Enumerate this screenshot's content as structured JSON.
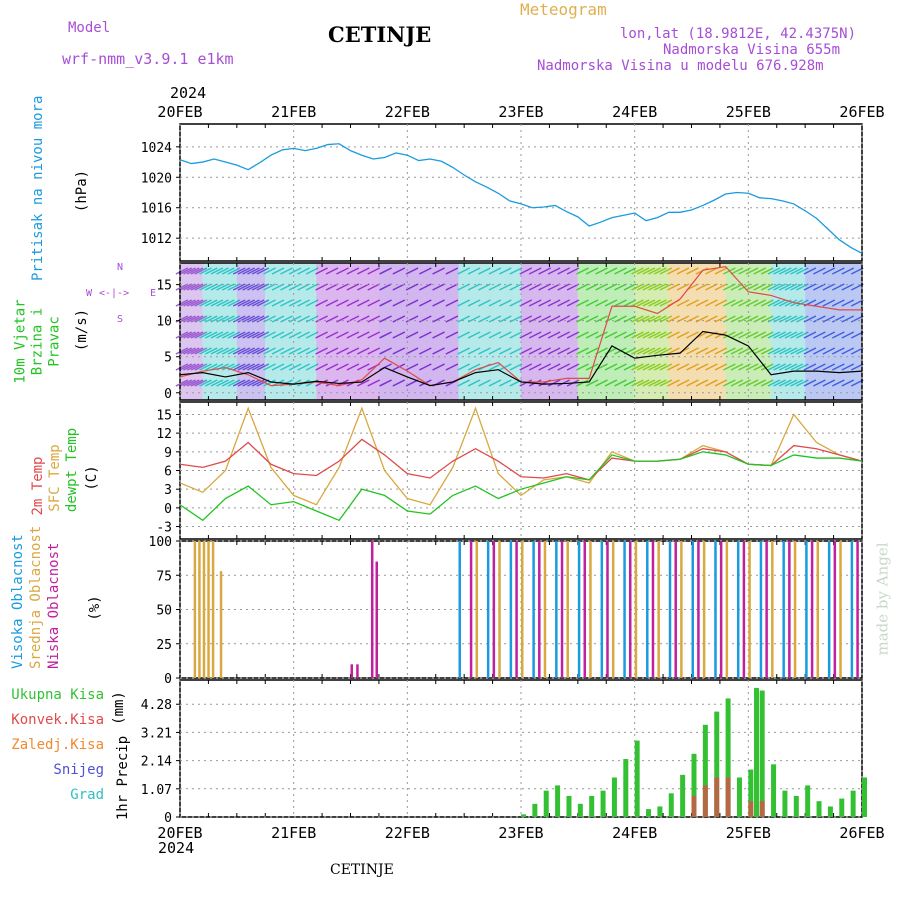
{
  "header": {
    "model_label": "Model",
    "model_name": "wrf-nmm_v3.9.1 e1km",
    "station": "CETINJE",
    "meteogram": "Meteogram",
    "lonlat": "lon,lat (18.9812E, 42.4375N)",
    "elevation": "Nadmorska Visina 655m",
    "model_elevation": "Nadmorska Visina u modelu 676.928m",
    "year_top": "2024",
    "year_bottom": "2024",
    "footer_station": "CETINJE",
    "credit": "made by Angel"
  },
  "colors": {
    "pressure": "#1a9be0",
    "temp2m": "#e04a4a",
    "sfc": "#d9a840",
    "dewpt": "#22c322",
    "high_cloud": "#1a9be0",
    "mid_cloud": "#d9a840",
    "low_cloud": "#c0209f",
    "total_precip": "#33c133",
    "conv_precip": "#e04a4a",
    "frozen": "#f08a30",
    "snow": "#5050d8",
    "grad": "#30c0c0"
  },
  "chart_data": [
    {
      "type": "line",
      "panel": "pressure",
      "ylabel": "Pritisak na nivou mora",
      "units": "(hPa)",
      "ylim": [
        1009,
        1027
      ],
      "yticks": [
        "1024",
        "1020",
        "1016",
        "1012"
      ],
      "x_categories": [
        "20FEB",
        "21FEB",
        "22FEB",
        "23FEB",
        "24FEB",
        "25FEB",
        "26FEB"
      ],
      "grid": true,
      "series": [
        {
          "key": "pressure",
          "x": [
            0,
            0.1,
            0.2,
            0.3,
            0.4,
            0.5,
            0.6,
            0.7,
            0.8,
            0.9,
            1.0,
            1.1,
            1.2,
            1.3,
            1.4,
            1.5,
            1.6,
            1.7,
            1.8,
            1.9,
            2.0,
            2.1,
            2.2,
            2.3,
            2.4,
            2.5,
            2.6,
            2.7,
            2.8,
            2.9,
            3.0,
            3.1,
            3.2,
            3.3,
            3.4,
            3.5,
            3.6,
            3.7,
            3.8,
            3.9,
            4.0,
            4.1,
            4.2,
            4.3,
            4.4,
            4.5,
            4.6,
            4.7,
            4.8,
            4.9,
            5.0,
            5.1,
            5.2,
            5.3,
            5.4,
            5.5,
            5.6,
            5.7,
            5.8,
            5.9,
            6.0
          ],
          "values": [
            1022.3,
            1021.8,
            1022.0,
            1022.4,
            1022.0,
            1021.6,
            1021.0,
            1021.9,
            1022.9,
            1023.6,
            1023.8,
            1023.5,
            1023.8,
            1024.3,
            1024.4,
            1023.5,
            1022.9,
            1022.4,
            1022.6,
            1023.2,
            1022.9,
            1022.2,
            1022.4,
            1022.1,
            1021.3,
            1020.3,
            1019.4,
            1018.7,
            1017.9,
            1016.9,
            1016.5,
            1016.0,
            1016.1,
            1016.3,
            1015.5,
            1014.8,
            1013.6,
            1014.1,
            1014.7,
            1015.0,
            1015.3,
            1014.3,
            1014.7,
            1015.4,
            1015.4,
            1015.7,
            1016.3,
            1017.0,
            1017.8,
            1018.0,
            1017.9,
            1017.3,
            1017.2,
            1016.9,
            1016.5,
            1015.6,
            1014.6,
            1013.2,
            1011.8,
            1010.8,
            1010.0
          ]
        }
      ]
    },
    {
      "type": "line",
      "panel": "wind",
      "ylabel": "10m Vjetar Brzina i Pravac",
      "units": "(m/s)",
      "compass": {
        "n": "N",
        "w": "W",
        "e": "E",
        "s": "S"
      },
      "ylim": [
        -1,
        18
      ],
      "yticks": [
        "15",
        "10",
        "5",
        "0"
      ],
      "grid": true,
      "series": [
        {
          "key": "wind_speed",
          "x": [
            0,
            0.2,
            0.4,
            0.6,
            0.8,
            1.0,
            1.2,
            1.4,
            1.6,
            1.8,
            2.0,
            2.2,
            2.4,
            2.6,
            2.8,
            3.0,
            3.2,
            3.4,
            3.6,
            3.8,
            4.0,
            4.2,
            4.4,
            4.6,
            4.8,
            5.0,
            5.2,
            5.4,
            5.6,
            5.8,
            6.0
          ],
          "values": [
            2.5,
            2.8,
            2.2,
            2.8,
            1.5,
            1.2,
            1.6,
            1.3,
            1.5,
            3.5,
            2.2,
            1.0,
            1.5,
            2.8,
            3.2,
            1.5,
            1.2,
            1.3,
            1.5,
            6.5,
            4.8,
            5.2,
            5.5,
            8.5,
            8.0,
            6.5,
            2.5,
            3.0,
            3.0,
            2.8,
            3.0
          ]
        },
        {
          "key": "wind_gust",
          "x": [
            0,
            0.2,
            0.4,
            0.6,
            0.8,
            1.0,
            1.2,
            1.4,
            1.6,
            1.8,
            2.0,
            2.2,
            2.4,
            2.6,
            2.8,
            3.0,
            3.2,
            3.4,
            3.6,
            3.8,
            4.0,
            4.2,
            4.4,
            4.6,
            4.8,
            5.0,
            5.2,
            5.4,
            5.6,
            5.8,
            6.0
          ],
          "values": [
            2.2,
            3.0,
            3.5,
            2.5,
            1.0,
            1.2,
            1.5,
            1.0,
            1.8,
            4.8,
            3.0,
            1.0,
            1.5,
            3.2,
            4.2,
            1.5,
            1.5,
            2.0,
            2.0,
            12.0,
            12.0,
            11.0,
            13.0,
            17.0,
            17.5,
            14.0,
            13.5,
            12.5,
            12.0,
            11.5,
            11.5
          ]
        }
      ]
    },
    {
      "type": "line",
      "panel": "temperature",
      "ylabel": "2m Temp",
      "ylabel2": "SFC Temp",
      "ylabel3": "dewpt Temp",
      "units": "(C)",
      "ylim": [
        -5,
        17
      ],
      "yticks": [
        "15",
        "12",
        "9",
        "6",
        "3",
        "0",
        "-3"
      ],
      "grid": true,
      "series": [
        {
          "key": "temp2m",
          "x": [
            0,
            0.2,
            0.4,
            0.6,
            0.8,
            1.0,
            1.2,
            1.4,
            1.6,
            1.8,
            2.0,
            2.2,
            2.4,
            2.6,
            2.8,
            3.0,
            3.2,
            3.4,
            3.6,
            3.8,
            4.0,
            4.2,
            4.4,
            4.6,
            4.8,
            5.0,
            5.2,
            5.4,
            5.6,
            5.8,
            6.0
          ],
          "values": [
            7.0,
            6.5,
            7.5,
            10.5,
            7.0,
            5.5,
            5.2,
            7.5,
            11.0,
            8.5,
            5.5,
            4.8,
            7.5,
            9.5,
            7.5,
            5.0,
            4.8,
            5.5,
            4.5,
            8.0,
            7.5,
            7.5,
            7.8,
            9.5,
            9.0,
            7.0,
            6.8,
            10.0,
            9.5,
            8.5,
            7.5
          ]
        },
        {
          "key": "sfc",
          "x": [
            0,
            0.2,
            0.4,
            0.6,
            0.8,
            1.0,
            1.2,
            1.4,
            1.6,
            1.8,
            2.0,
            2.2,
            2.4,
            2.6,
            2.8,
            3.0,
            3.2,
            3.4,
            3.6,
            3.8,
            4.0,
            4.2,
            4.4,
            4.6,
            4.8,
            5.0,
            5.2,
            5.4,
            5.6,
            5.8,
            6.0
          ],
          "values": [
            4.0,
            2.5,
            6.0,
            16.0,
            6.5,
            2.0,
            0.5,
            6.5,
            16.0,
            6.0,
            1.5,
            0.5,
            6.5,
            16.0,
            5.5,
            2.0,
            4.5,
            5.0,
            4.0,
            9.0,
            7.5,
            7.5,
            7.8,
            10.0,
            9.0,
            7.0,
            6.8,
            15.0,
            10.5,
            8.5,
            7.5
          ]
        },
        {
          "key": "dewpt",
          "x": [
            0,
            0.2,
            0.4,
            0.6,
            0.8,
            1.0,
            1.2,
            1.4,
            1.6,
            1.8,
            2.0,
            2.2,
            2.4,
            2.6,
            2.8,
            3.0,
            3.2,
            3.4,
            3.6,
            3.8,
            4.0,
            4.2,
            4.4,
            4.6,
            4.8,
            5.0,
            5.2,
            5.4,
            5.6,
            5.8,
            6.0
          ],
          "values": [
            0.5,
            -2.0,
            1.5,
            3.5,
            0.5,
            1.0,
            -0.5,
            -2.0,
            3.0,
            2.0,
            -0.5,
            -1.0,
            2.0,
            3.5,
            1.5,
            3.0,
            4.0,
            5.0,
            4.5,
            8.5,
            7.5,
            7.5,
            7.8,
            9.0,
            8.5,
            7.0,
            6.8,
            8.5,
            8.0,
            8.0,
            7.5
          ]
        }
      ]
    },
    {
      "type": "bar",
      "panel": "cloud",
      "ylabel": "Visoka Oblacnost",
      "ylabel2": "Srednja Oblacnost",
      "ylabel3": "Niska Oblacnost",
      "units": "(%)",
      "ylim": [
        0,
        100
      ],
      "yticks": [
        "100",
        "75",
        "50",
        "25",
        "0"
      ],
      "grid": true,
      "series": [
        {
          "key": "high_cloud",
          "x": [
            2.45,
            2.7,
            2.9,
            3.1,
            3.3,
            3.5,
            3.7,
            3.9,
            4.1,
            4.3,
            4.5,
            4.7,
            4.9,
            5.1,
            5.3,
            5.5,
            5.7,
            5.9
          ],
          "values": [
            100,
            100,
            100,
            100,
            100,
            100,
            100,
            100,
            100,
            100,
            100,
            100,
            100,
            100,
            100,
            100,
            100,
            100
          ]
        },
        {
          "key": "mid_cloud",
          "x": [
            0.12,
            0.16,
            0.2,
            0.24,
            0.28,
            0.35,
            2.6,
            2.8,
            3.0,
            3.2,
            3.4,
            3.6,
            3.8,
            4.0,
            4.2,
            4.4,
            4.6,
            4.8,
            5.0,
            5.2,
            5.4,
            5.6,
            5.8
          ],
          "values": [
            100,
            100,
            100,
            100,
            100,
            78,
            100,
            100,
            100,
            100,
            100,
            100,
            100,
            100,
            100,
            100,
            100,
            100,
            100,
            100,
            100,
            100,
            100
          ]
        },
        {
          "key": "low_cloud",
          "x": [
            1.5,
            1.55,
            1.68,
            1.72,
            2.55,
            2.75,
            2.95,
            3.15,
            3.35,
            3.55,
            3.75,
            3.95,
            4.15,
            4.35,
            4.55,
            4.75,
            4.95,
            5.15,
            5.35,
            5.55,
            5.75,
            5.95
          ],
          "values": [
            10,
            10,
            100,
            85,
            100,
            100,
            100,
            100,
            100,
            100,
            100,
            100,
            100,
            100,
            100,
            100,
            100,
            100,
            100,
            100,
            100,
            100
          ]
        }
      ]
    },
    {
      "type": "bar",
      "panel": "precip",
      "ylabel": "1hr Precip",
      "units": "(mm)",
      "ylim": [
        0,
        5.2
      ],
      "yticks": [
        "4.28",
        "3.21",
        "2.14",
        "1.07",
        "0"
      ],
      "grid": true,
      "legend": [
        "Ukupna Kisa",
        "Konvek.Kisa",
        "Zaledj.Kisa",
        "Snijeg",
        "Grad"
      ],
      "series": [
        {
          "key": "total_precip",
          "x": [
            3.0,
            3.1,
            3.2,
            3.3,
            3.4,
            3.5,
            3.6,
            3.7,
            3.8,
            3.9,
            4.0,
            4.1,
            4.2,
            4.3,
            4.4,
            4.5,
            4.6,
            4.7,
            4.8,
            4.9,
            5.0,
            5.05,
            5.1,
            5.2,
            5.3,
            5.4,
            5.5,
            5.6,
            5.7,
            5.8,
            5.9,
            6.0
          ],
          "values": [
            0.1,
            0.5,
            1.0,
            1.2,
            0.8,
            0.5,
            0.8,
            1.0,
            1.5,
            2.2,
            2.9,
            0.3,
            0.4,
            0.9,
            1.6,
            2.4,
            3.5,
            4.0,
            4.5,
            1.5,
            1.8,
            4.9,
            4.8,
            2.0,
            1.0,
            0.8,
            1.2,
            0.6,
            0.4,
            0.7,
            1.0,
            1.5
          ]
        },
        {
          "key": "conv_precip",
          "x": [
            4.5,
            4.6,
            4.7,
            4.8,
            5.0,
            5.1
          ],
          "values": [
            0.8,
            1.2,
            1.5,
            1.5,
            0.6,
            0.6
          ]
        }
      ]
    }
  ]
}
